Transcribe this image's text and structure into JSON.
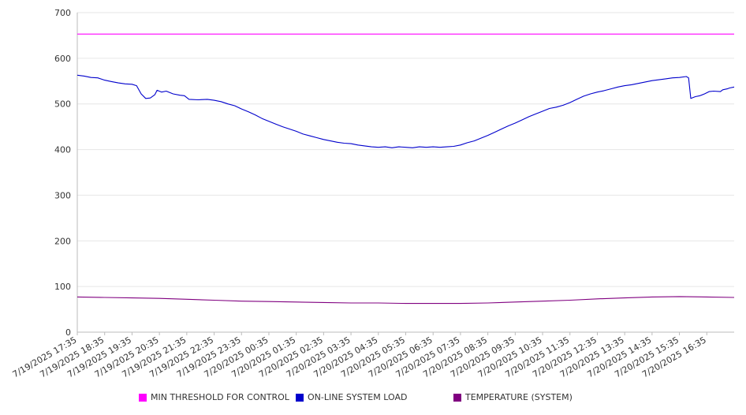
{
  "chart_data": {
    "type": "line",
    "title": "",
    "xlabel": "",
    "ylabel": "",
    "ylim": [
      0,
      700
    ],
    "y_ticks": [
      0,
      100,
      200,
      300,
      400,
      500,
      600,
      700
    ],
    "grid": true,
    "legend_position": "bottom",
    "x_tick_labels": [
      "7/19/2025 17:35",
      "7/19/2025 18:35",
      "7/19/2025 19:35",
      "7/19/2025 20:35",
      "7/19/2025 21:35",
      "7/19/2025 22:35",
      "7/19/2025 23:35",
      "7/20/2025 00:35",
      "7/20/2025 01:35",
      "7/20/2025 02:35",
      "7/20/2025 03:35",
      "7/20/2025 04:35",
      "7/20/2025 05:35",
      "7/20/2025 06:35",
      "7/20/2025 07:35",
      "7/20/2025 08:35",
      "7/20/2025 09:35",
      "7/20/2025 10:35",
      "7/20/2025 11:35",
      "7/20/2025 12:35",
      "7/20/2025 13:35",
      "7/20/2025 14:35",
      "7/20/2025 15:35",
      "7/20/2025 16:35"
    ],
    "x_range": [
      "7/19/2025 17:35",
      "7/20/2025 17:35"
    ],
    "series": [
      {
        "name": "MIN THRESHOLD FOR CONTROL",
        "color": "#ff00ff",
        "points": [
          [
            "7/19/2025 17:35",
            653
          ],
          [
            "7/20/2025 17:35",
            653
          ]
        ]
      },
      {
        "name": "ON-LINE SYSTEM LOAD",
        "color": "#0000cc",
        "points": [
          [
            "7/19/2025 17:35",
            563
          ],
          [
            "7/19/2025 17:50",
            561
          ],
          [
            "7/19/2025 18:05",
            558
          ],
          [
            "7/19/2025 18:20",
            557
          ],
          [
            "7/19/2025 18:35",
            552
          ],
          [
            "7/19/2025 18:50",
            549
          ],
          [
            "7/19/2025 19:05",
            546
          ],
          [
            "7/19/2025 19:20",
            544
          ],
          [
            "7/19/2025 19:35",
            543
          ],
          [
            "7/19/2025 19:45",
            540
          ],
          [
            "7/19/2025 19:55",
            522
          ],
          [
            "7/19/2025 20:05",
            512
          ],
          [
            "7/19/2025 20:15",
            513
          ],
          [
            "7/19/2025 20:25",
            520
          ],
          [
            "7/19/2025 20:30",
            530
          ],
          [
            "7/19/2025 20:40",
            526
          ],
          [
            "7/19/2025 20:50",
            528
          ],
          [
            "7/19/2025 21:05",
            522
          ],
          [
            "7/19/2025 21:20",
            519
          ],
          [
            "7/19/2025 21:30",
            518
          ],
          [
            "7/19/2025 21:40",
            510
          ],
          [
            "7/19/2025 22:00",
            509
          ],
          [
            "7/19/2025 22:20",
            510
          ],
          [
            "7/19/2025 22:35",
            508
          ],
          [
            "7/19/2025 22:50",
            505
          ],
          [
            "7/19/2025 23:05",
            500
          ],
          [
            "7/19/2025 23:20",
            496
          ],
          [
            "7/19/2025 23:35",
            489
          ],
          [
            "7/19/2025 23:50",
            483
          ],
          [
            "7/20/2025 00:05",
            476
          ],
          [
            "7/20/2025 00:20",
            468
          ],
          [
            "7/20/2025 00:35",
            462
          ],
          [
            "7/20/2025 00:50",
            456
          ],
          [
            "7/20/2025 01:05",
            450
          ],
          [
            "7/20/2025 01:20",
            445
          ],
          [
            "7/20/2025 01:35",
            440
          ],
          [
            "7/20/2025 01:50",
            434
          ],
          [
            "7/20/2025 02:05",
            430
          ],
          [
            "7/20/2025 02:20",
            426
          ],
          [
            "7/20/2025 02:35",
            422
          ],
          [
            "7/20/2025 02:50",
            419
          ],
          [
            "7/20/2025 03:05",
            416
          ],
          [
            "7/20/2025 03:20",
            414
          ],
          [
            "7/20/2025 03:35",
            413
          ],
          [
            "7/20/2025 03:50",
            410
          ],
          [
            "7/20/2025 04:05",
            408
          ],
          [
            "7/20/2025 04:20",
            406
          ],
          [
            "7/20/2025 04:35",
            405
          ],
          [
            "7/20/2025 04:50",
            406
          ],
          [
            "7/20/2025 05:05",
            404
          ],
          [
            "7/20/2025 05:20",
            406
          ],
          [
            "7/20/2025 05:35",
            405
          ],
          [
            "7/20/2025 05:50",
            404
          ],
          [
            "7/20/2025 06:05",
            406
          ],
          [
            "7/20/2025 06:20",
            405
          ],
          [
            "7/20/2025 06:35",
            406
          ],
          [
            "7/20/2025 06:50",
            405
          ],
          [
            "7/20/2025 07:05",
            406
          ],
          [
            "7/20/2025 07:20",
            407
          ],
          [
            "7/20/2025 07:35",
            410
          ],
          [
            "7/20/2025 07:50",
            415
          ],
          [
            "7/20/2025 08:05",
            419
          ],
          [
            "7/20/2025 08:20",
            425
          ],
          [
            "7/20/2025 08:35",
            431
          ],
          [
            "7/20/2025 08:50",
            438
          ],
          [
            "7/20/2025 09:05",
            445
          ],
          [
            "7/20/2025 09:20",
            452
          ],
          [
            "7/20/2025 09:35",
            458
          ],
          [
            "7/20/2025 09:50",
            465
          ],
          [
            "7/20/2025 10:05",
            472
          ],
          [
            "7/20/2025 10:20",
            478
          ],
          [
            "7/20/2025 10:35",
            484
          ],
          [
            "7/20/2025 10:50",
            490
          ],
          [
            "7/20/2025 11:05",
            493
          ],
          [
            "7/20/2025 11:20",
            497
          ],
          [
            "7/20/2025 11:35",
            503
          ],
          [
            "7/20/2025 11:50",
            510
          ],
          [
            "7/20/2025 12:05",
            517
          ],
          [
            "7/20/2025 12:20",
            522
          ],
          [
            "7/20/2025 12:35",
            526
          ],
          [
            "7/20/2025 12:50",
            529
          ],
          [
            "7/20/2025 13:05",
            533
          ],
          [
            "7/20/2025 13:20",
            537
          ],
          [
            "7/20/2025 13:35",
            540
          ],
          [
            "7/20/2025 13:50",
            542
          ],
          [
            "7/20/2025 14:05",
            545
          ],
          [
            "7/20/2025 14:20",
            548
          ],
          [
            "7/20/2025 14:35",
            551
          ],
          [
            "7/20/2025 14:50",
            553
          ],
          [
            "7/20/2025 15:05",
            555
          ],
          [
            "7/20/2025 15:20",
            557
          ],
          [
            "7/20/2025 15:35",
            558
          ],
          [
            "7/20/2025 15:50",
            560
          ],
          [
            "7/20/2025 15:55",
            557
          ],
          [
            "7/20/2025 16:00",
            512
          ],
          [
            "7/20/2025 16:10",
            516
          ],
          [
            "7/20/2025 16:20",
            518
          ],
          [
            "7/20/2025 16:30",
            522
          ],
          [
            "7/20/2025 16:40",
            527
          ],
          [
            "7/20/2025 16:50",
            528
          ],
          [
            "7/20/2025 17:05",
            527
          ],
          [
            "7/20/2025 17:10",
            531
          ],
          [
            "7/20/2025 17:20",
            533
          ],
          [
            "7/20/2025 17:25",
            535
          ],
          [
            "7/20/2025 17:35",
            537
          ]
        ]
      },
      {
        "name": "TEMPERATURE (SYSTEM)",
        "color": "#800080",
        "points": [
          [
            "7/19/2025 17:35",
            77
          ],
          [
            "7/19/2025 18:35",
            76
          ],
          [
            "7/19/2025 19:35",
            75
          ],
          [
            "7/19/2025 20:35",
            74
          ],
          [
            "7/19/2025 21:35",
            72
          ],
          [
            "7/19/2025 22:35",
            70
          ],
          [
            "7/19/2025 23:35",
            68
          ],
          [
            "7/20/2025 00:35",
            67
          ],
          [
            "7/20/2025 01:35",
            66
          ],
          [
            "7/20/2025 02:35",
            65
          ],
          [
            "7/20/2025 03:35",
            64
          ],
          [
            "7/20/2025 04:35",
            64
          ],
          [
            "7/20/2025 05:35",
            63
          ],
          [
            "7/20/2025 06:35",
            63
          ],
          [
            "7/20/2025 07:35",
            63
          ],
          [
            "7/20/2025 08:35",
            64
          ],
          [
            "7/20/2025 09:35",
            66
          ],
          [
            "7/20/2025 10:35",
            68
          ],
          [
            "7/20/2025 11:35",
            70
          ],
          [
            "7/20/2025 12:35",
            73
          ],
          [
            "7/20/2025 13:35",
            75
          ],
          [
            "7/20/2025 14:35",
            77
          ],
          [
            "7/20/2025 15:35",
            78
          ],
          [
            "7/20/2025 16:35",
            77
          ],
          [
            "7/20/2025 17:35",
            76
          ]
        ]
      }
    ]
  }
}
